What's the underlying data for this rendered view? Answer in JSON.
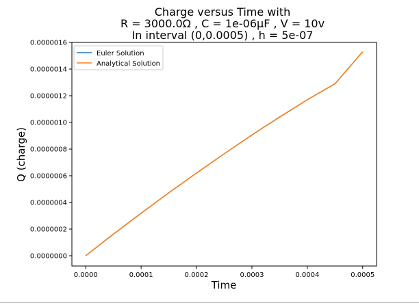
{
  "chart_data": {
    "type": "line",
    "title_lines": [
      "Charge versus Time with",
      "R = 3000.0Ω , C = 1e-06μF , V = 10v",
      "In interval (0,0.0005) , h = 5e-07"
    ],
    "xlabel": "Time",
    "ylabel": "Q (charge)",
    "xlim": [
      -2.5e-05,
      0.000525
    ],
    "ylim": [
      -7.7e-08,
      1.6e-06
    ],
    "x_ticks": [
      0,
      0.0001,
      0.0002,
      0.0003,
      0.0004,
      0.0005
    ],
    "x_tick_labels": [
      "0.0000",
      "0.0001",
      "0.0002",
      "0.0003",
      "0.0004",
      "0.0005"
    ],
    "y_ticks": [
      0,
      2e-07,
      4e-07,
      6e-07,
      8e-07,
      1e-06,
      1.2e-06,
      1.4e-06,
      1.6e-06
    ],
    "y_tick_labels": [
      "0.0000000",
      "0.0000002",
      "0.0000004",
      "0.0000006",
      "0.0000008",
      "0.0000010",
      "0.0000012",
      "0.0000014",
      "0.0000016"
    ],
    "legend_position": "upper-left",
    "grid": false,
    "series": [
      {
        "name": "Euler Solution",
        "color": "#1f77b4",
        "x": [
          0,
          5e-05,
          0.0001,
          0.00015,
          0.0002,
          0.00025,
          0.0003,
          0.00035,
          0.0004,
          0.00045,
          0.0005
        ],
        "y": [
          0,
          1.62e-07,
          3.19e-07,
          4.72e-07,
          6.2e-07,
          7.65e-07,
          9.06e-07,
          1.04e-06,
          1.17e-06,
          1.29e-06,
          1.53e-06
        ]
      },
      {
        "name": "Analytical Solution",
        "color": "#ff7f0e",
        "x": [
          0,
          5e-05,
          0.0001,
          0.00015,
          0.0002,
          0.00025,
          0.0003,
          0.00035,
          0.0004,
          0.00045,
          0.0005
        ],
        "y": [
          0,
          1.62e-07,
          3.19e-07,
          4.72e-07,
          6.2e-07,
          7.65e-07,
          9.06e-07,
          1.04e-06,
          1.17e-06,
          1.29e-06,
          1.53e-06
        ]
      }
    ]
  }
}
